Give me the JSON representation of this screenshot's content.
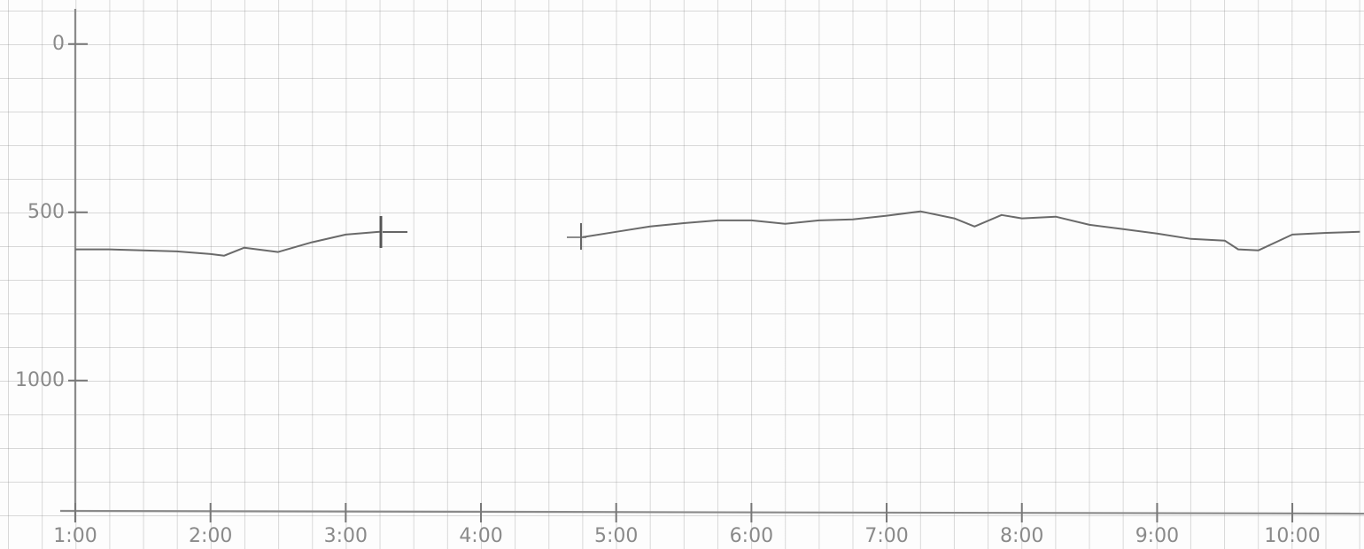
{
  "chart_data": {
    "type": "line",
    "x": [
      1.0,
      1.25,
      1.5,
      1.75,
      2.0,
      2.1,
      2.25,
      2.5,
      2.75,
      3.0,
      3.25,
      4.0,
      4.75,
      5.0,
      5.25,
      5.5,
      5.75,
      6.0,
      6.25,
      6.5,
      6.75,
      7.0,
      7.25,
      7.5,
      7.65,
      7.85,
      8.0,
      8.25,
      8.5,
      8.75,
      9.0,
      9.25,
      9.5,
      9.6,
      9.75,
      10.0,
      10.25,
      10.5
    ],
    "series": [
      {
        "color": "#6a6a6a",
        "values": [
          610,
          610,
          613,
          616,
          624,
          629,
          605,
          618,
          589,
          566,
          558,
          null,
          574,
          558,
          542,
          532,
          524,
          524,
          534,
          524,
          521,
          510,
          497,
          518,
          542,
          508,
          518,
          513,
          537,
          550,
          563,
          579,
          584,
          610,
          613,
          566,
          561,
          558
        ]
      }
    ],
    "xlim": [
      1,
      10.53
    ],
    "xticks": [
      {
        "value": 1,
        "label": "1:00"
      },
      {
        "value": 2,
        "label": "2:00"
      },
      {
        "value": 3,
        "label": "3:00"
      },
      {
        "value": 4,
        "label": "4:00"
      },
      {
        "value": 5,
        "label": "5:00"
      },
      {
        "value": 6,
        "label": "6:00"
      },
      {
        "value": 7,
        "label": "7:00"
      },
      {
        "value": 8,
        "label": "8:00"
      },
      {
        "value": 9,
        "label": "9:00"
      },
      {
        "value": 10,
        "label": "10:00"
      }
    ],
    "ylim": [
      1390,
      -110
    ],
    "yticks": [
      0,
      500,
      1000
    ]
  }
}
